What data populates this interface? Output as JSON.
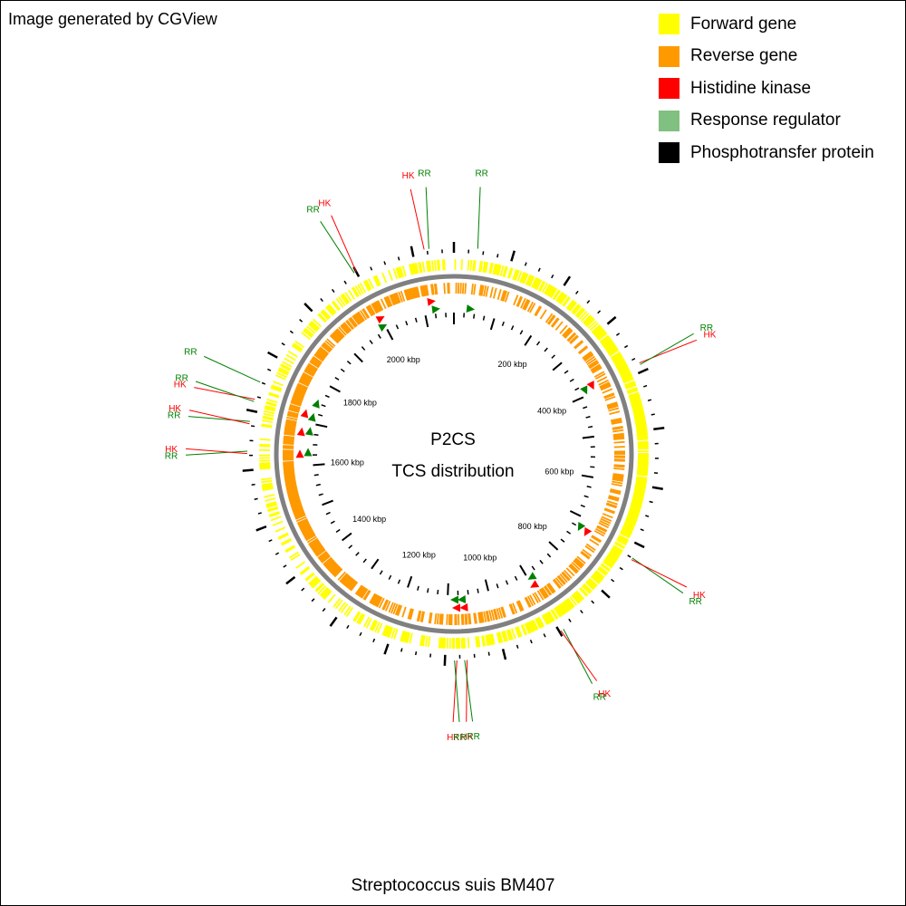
{
  "credit": "Image generated by CGView",
  "legend": [
    {
      "label": "Forward gene",
      "color": "#ffff00"
    },
    {
      "label": "Reverse gene",
      "color": "#ff9900"
    },
    {
      "label": "Histidine kinase",
      "color": "#ff0000"
    },
    {
      "label": "Response regulator",
      "color": "#80c080"
    },
    {
      "label": "Phosphotransfer protein",
      "color": "#000000"
    }
  ],
  "center": {
    "line1": "P2CS",
    "line2": "TCS distribution"
  },
  "organism": "Streptococcus suis BM407",
  "genome_length_kbp": 2170,
  "scale_labels": [
    {
      "text": "200 kbp",
      "kbp": 200
    },
    {
      "text": "400 kbp",
      "kbp": 400
    },
    {
      "text": "600 kbp",
      "kbp": 600
    },
    {
      "text": "800 kbp",
      "kbp": 800
    },
    {
      "text": "1000 kbp",
      "kbp": 1000
    },
    {
      "text": "1200 kbp",
      "kbp": 1200
    },
    {
      "text": "1400 kbp",
      "kbp": 1400
    },
    {
      "text": "1600 kbp",
      "kbp": 1600
    },
    {
      "text": "1800 kbp",
      "kbp": 1800
    },
    {
      "text": "2000 kbp",
      "kbp": 2000
    }
  ],
  "features": [
    {
      "type": "RR",
      "label": "RR",
      "kbp": 40
    },
    {
      "type": "RR",
      "label": "RR",
      "kbp": 2128
    },
    {
      "type": "HK",
      "label": "HK",
      "kbp": 2120
    },
    {
      "type": "HK",
      "label": "HK",
      "kbp": 2000
    },
    {
      "type": "RR",
      "label": "RR",
      "kbp": 1996
    },
    {
      "type": "HK",
      "label": "HK",
      "kbp": 385
    },
    {
      "type": "RR",
      "label": "RR",
      "kbp": 388
    },
    {
      "type": "RR",
      "label": "RR",
      "kbp": 725
    },
    {
      "type": "HK",
      "label": "HK",
      "kbp": 728
    },
    {
      "type": "RR",
      "label": "RR",
      "kbp": 892
    },
    {
      "type": "HK",
      "label": "HK",
      "kbp": 897
    },
    {
      "type": "HK",
      "label": "HK",
      "kbp": 1063
    },
    {
      "type": "RR",
      "label": "RR",
      "kbp": 1067
    },
    {
      "type": "HK",
      "label": "HK",
      "kbp": 1080
    },
    {
      "type": "RR",
      "label": "RR",
      "kbp": 1084
    },
    {
      "type": "RR",
      "label": "RR",
      "kbp": 1750
    },
    {
      "type": "HK",
      "label": "HK",
      "kbp": 1720
    },
    {
      "type": "RR",
      "label": "RR",
      "kbp": 1716
    },
    {
      "type": "RR",
      "label": "RR",
      "kbp": 1682
    },
    {
      "type": "HK",
      "label": "HK",
      "kbp": 1678
    },
    {
      "type": "RR",
      "label": "RR",
      "kbp": 1632
    },
    {
      "type": "HK",
      "label": "HK",
      "kbp": 1628
    }
  ],
  "colors": {
    "forward": "#ffff00",
    "reverse": "#ff9900",
    "hk": "#ff0000",
    "rr": "#008000",
    "backbone": "#808080"
  }
}
